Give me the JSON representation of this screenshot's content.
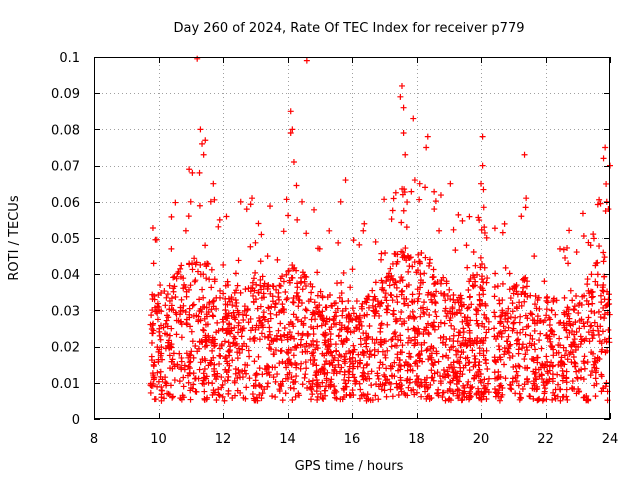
{
  "chart_data": {
    "type": "scatter",
    "title": "Day 260 of 2024, Rate Of TEC Index for receiver p779",
    "xlabel": "GPS time / hours",
    "ylabel": "ROTI / TECUs",
    "xlim": [
      8,
      24
    ],
    "ylim": [
      0,
      0.1
    ],
    "xticks": [
      "8",
      "10",
      "12",
      "14",
      "16",
      "18",
      "20",
      "22",
      "24"
    ],
    "yticks": [
      "0",
      "0.01",
      "0.02",
      "0.03",
      "0.04",
      "0.05",
      "0.06",
      "0.07",
      "0.08",
      "0.09",
      "0.1"
    ],
    "grid": true,
    "marker": "+",
    "color": "#ff0000",
    "series": [
      {
        "name": "p779",
        "points": [
          [
            11.2,
            0.0995
          ],
          [
            14.6,
            0.099
          ],
          [
            17.55,
            0.092
          ],
          [
            17.5,
            0.089
          ],
          [
            17.6,
            0.086
          ],
          [
            14.1,
            0.085
          ],
          [
            17.9,
            0.083
          ],
          [
            11.3,
            0.08
          ],
          [
            14.15,
            0.08
          ],
          [
            14.1,
            0.079
          ],
          [
            17.6,
            0.079
          ],
          [
            20.05,
            0.078
          ],
          [
            18.35,
            0.078
          ],
          [
            11.45,
            0.077
          ],
          [
            11.35,
            0.076
          ],
          [
            18.3,
            0.075
          ],
          [
            23.85,
            0.075
          ],
          [
            11.4,
            0.073
          ],
          [
            17.65,
            0.073
          ],
          [
            21.35,
            0.073
          ],
          [
            23.8,
            0.072
          ],
          [
            14.2,
            0.071
          ],
          [
            20.05,
            0.07
          ],
          [
            24.0,
            0.07
          ],
          [
            10.95,
            0.069
          ],
          [
            11.05,
            0.068
          ],
          [
            17.95,
            0.066
          ],
          [
            15.8,
            0.066
          ],
          [
            11.7,
            0.065
          ],
          [
            19.05,
            0.065
          ],
          [
            20.0,
            0.065
          ],
          [
            18.1,
            0.065
          ],
          [
            12.9,
            0.061
          ],
          [
            15.65,
            0.06
          ],
          [
            14.45,
            0.06
          ],
          [
            11.0,
            0.06
          ],
          [
            23.9,
            0.06
          ],
          [
            12.55,
            0.06
          ],
          [
            21.4,
            0.061
          ],
          [
            18.55,
            0.058
          ],
          [
            23.95,
            0.058
          ],
          [
            21.25,
            0.056
          ],
          [
            14.3,
            0.055
          ],
          [
            11.9,
            0.055
          ],
          [
            13.1,
            0.054
          ],
          [
            20.1,
            0.053
          ],
          [
            17.7,
            0.053
          ],
          [
            10.85,
            0.052
          ],
          [
            16.35,
            0.052
          ],
          [
            18.7,
            0.052
          ],
          [
            10.4,
            0.047
          ],
          [
            15.0,
            0.047
          ],
          [
            19.55,
            0.048
          ],
          [
            22.45,
            0.047
          ],
          [
            23.4,
            0.048
          ],
          [
            9.85,
            0.043
          ],
          [
            22.7,
            0.043
          ],
          [
            10.05,
            0.037
          ],
          [
            21.65,
            0.045
          ],
          [
            16.9,
            0.044
          ]
        ]
      }
    ]
  }
}
